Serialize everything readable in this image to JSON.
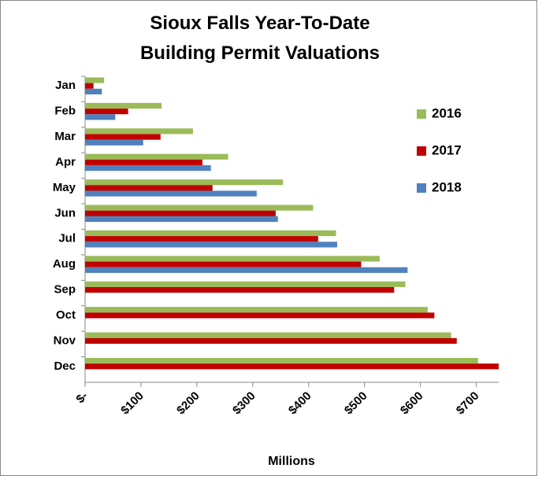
{
  "chart_data": {
    "type": "bar",
    "orientation": "horizontal",
    "title": [
      "Sioux Falls Year-To-Date",
      "Building Permit Valuations"
    ],
    "x_label": "Millions",
    "categories": [
      "Jan",
      "Feb",
      "Mar",
      "Apr",
      "May",
      "Jun",
      "Jul",
      "Aug",
      "Sep",
      "Oct",
      "Nov",
      "Dec"
    ],
    "series": [
      {
        "name": "2016",
        "color": "#9bbb59",
        "values": [
          34,
          137,
          193,
          256,
          354,
          408,
          449,
          527,
          573,
          613,
          655,
          703
        ]
      },
      {
        "name": "2017",
        "color": "#c00000",
        "values": [
          15,
          77,
          135,
          210,
          228,
          341,
          417,
          494,
          553,
          625,
          665,
          740
        ]
      },
      {
        "name": "2018",
        "color": "#4f81bd",
        "values": [
          30,
          54,
          104,
          225,
          307,
          345,
          451,
          577,
          null,
          null,
          null,
          null
        ]
      }
    ],
    "xlim": [
      0,
      740
    ],
    "xticks": [
      {
        "value": 0,
        "label": "$-"
      },
      {
        "value": 100,
        "label": "$100"
      },
      {
        "value": 200,
        "label": "$200"
      },
      {
        "value": 300,
        "label": "$300"
      },
      {
        "value": 400,
        "label": "$400"
      },
      {
        "value": 500,
        "label": "$500"
      },
      {
        "value": 600,
        "label": "$600"
      },
      {
        "value": 700,
        "label": "$700"
      }
    ],
    "legend": "right",
    "grid": false
  }
}
